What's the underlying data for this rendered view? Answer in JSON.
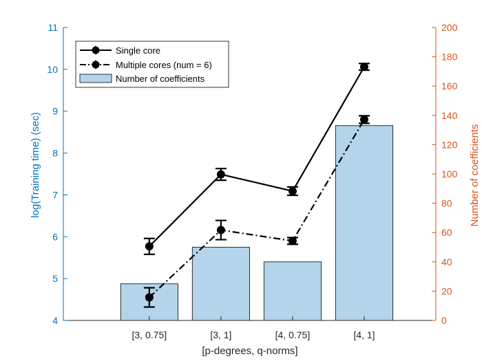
{
  "chart_data": {
    "type": "bar+line",
    "categories": [
      "[3, 0.75]",
      "[3, 1]",
      "[4, 0.75]",
      "[4, 1]"
    ],
    "xlabel": "[p-degrees, q-norms]",
    "y_left": {
      "label": "log(Training time) (sec)",
      "lim": [
        4,
        11
      ],
      "ticks": [
        4,
        5,
        6,
        7,
        8,
        9,
        10,
        11
      ],
      "color": "#0072BD"
    },
    "y_right": {
      "label": "Number of coefficients",
      "lim": [
        0,
        200
      ],
      "ticks": [
        0,
        20,
        40,
        60,
        80,
        100,
        120,
        140,
        160,
        180,
        200
      ],
      "color": "#D95319"
    },
    "bars": {
      "name": "Number of coefficients",
      "axis": "right",
      "values": [
        25,
        50,
        40,
        133
      ],
      "color": "#B3D4EA"
    },
    "series": [
      {
        "name": "Single core",
        "axis": "left",
        "style": "solid",
        "values": [
          5.77,
          7.49,
          7.09,
          10.06
        ],
        "errors": [
          0.19,
          0.14,
          0.1,
          0.08
        ]
      },
      {
        "name": "Multiple cores (num = 6)",
        "axis": "left",
        "style": "dashdot",
        "values": [
          4.55,
          6.16,
          5.9,
          8.8
        ],
        "errors": [
          0.23,
          0.23,
          0.08,
          0.09
        ]
      }
    ],
    "legend": {
      "placement": "top-left",
      "entries": [
        "Single core",
        "Multiple cores (num = 6)",
        "Number of coefficients"
      ]
    },
    "grid": false
  }
}
